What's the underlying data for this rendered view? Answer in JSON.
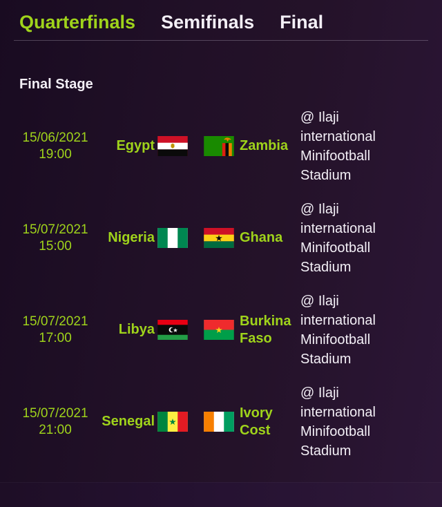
{
  "tabs": [
    {
      "label": "Quarterfinals",
      "active": true
    },
    {
      "label": "Semifinals",
      "active": false
    },
    {
      "label": "Final",
      "active": false
    }
  ],
  "section_title": "Final Stage",
  "colors": {
    "accent_green": "#9fd31b",
    "text_light": "#f3eff6",
    "background_dark": "#1e0e26"
  },
  "matches": [
    {
      "date": "15/06/2021",
      "time": "19:00",
      "home": "Egypt",
      "home_flag": "egypt-flag",
      "away": "Zambia",
      "away_flag": "zambia-flag",
      "venue": "@ Ilaji international Minifootball Stadium"
    },
    {
      "date": "15/07/2021",
      "time": "15:00",
      "home": "Nigeria",
      "home_flag": "nigeria-flag",
      "away": "Ghana",
      "away_flag": "ghana-flag",
      "venue": "@ Ilaji international Minifootball Stadium"
    },
    {
      "date": "15/07/2021",
      "time": "17:00",
      "home": "Libya",
      "home_flag": "libya-flag",
      "away": "Burkina Faso",
      "away_flag": "burkina-faso-flag",
      "venue": "@ Ilaji international Minifootball Stadium"
    },
    {
      "date": "15/07/2021",
      "time": "21:00",
      "home": "Senegal",
      "home_flag": "senegal-flag",
      "away": "Ivory Cost",
      "away_flag": "ivory-coast-flag",
      "venue": "@ Ilaji international Minifootball Stadium"
    }
  ]
}
